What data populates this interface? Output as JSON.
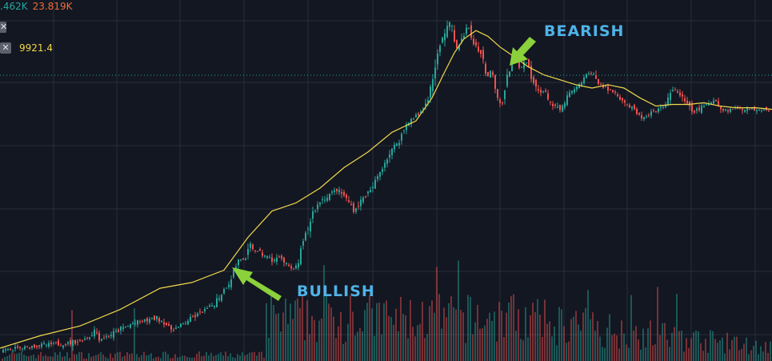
{
  "legend": {
    "value_a": ".462K",
    "value_b": "23.819K",
    "ma_value": "9921.4",
    "close_glyph": "✕"
  },
  "annotations": {
    "bearish": "BEARISH",
    "bullish": "BULLISH"
  },
  "colors": {
    "background": "#131722",
    "grid": "#2a2e39",
    "up": "#26a69a",
    "down": "#ef5350",
    "ma": "#f0d84a",
    "label": "#4fb3e8",
    "arrow": "#8bd13b",
    "price_line": "#26a69a"
  },
  "icons": [
    "close-icon",
    "arrow-icon"
  ],
  "chart_data": {
    "type": "candlestick",
    "ma_label": "9921.4",
    "price_path": [
      [
        0,
        2
      ],
      [
        10,
        3
      ],
      [
        25,
        5
      ],
      [
        40,
        7
      ],
      [
        55,
        9
      ],
      [
        70,
        10
      ],
      [
        85,
        11
      ],
      [
        100,
        14
      ],
      [
        110,
        18
      ],
      [
        118,
        28
      ],
      [
        124,
        16
      ],
      [
        135,
        20
      ],
      [
        150,
        28
      ],
      [
        165,
        35
      ],
      [
        180,
        38
      ],
      [
        195,
        42
      ],
      [
        205,
        36
      ],
      [
        212,
        28
      ],
      [
        222,
        30
      ],
      [
        235,
        40
      ],
      [
        250,
        48
      ],
      [
        265,
        58
      ],
      [
        275,
        70
      ],
      [
        285,
        85
      ],
      [
        292,
        100
      ],
      [
        298,
        115
      ],
      [
        305,
        110
      ],
      [
        312,
        130
      ],
      [
        320,
        122
      ],
      [
        330,
        118
      ],
      [
        340,
        112
      ],
      [
        350,
        116
      ],
      [
        358,
        108
      ],
      [
        365,
        98
      ],
      [
        372,
        110
      ],
      [
        380,
        140
      ],
      [
        390,
        170
      ],
      [
        400,
        185
      ],
      [
        410,
        192
      ],
      [
        420,
        198
      ],
      [
        428,
        192
      ],
      [
        436,
        182
      ],
      [
        442,
        172
      ],
      [
        448,
        182
      ],
      [
        455,
        190
      ],
      [
        462,
        196
      ],
      [
        470,
        212
      ],
      [
        480,
        232
      ],
      [
        490,
        248
      ],
      [
        500,
        262
      ],
      [
        508,
        280
      ],
      [
        515,
        284
      ],
      [
        522,
        290
      ],
      [
        530,
        300
      ],
      [
        537,
        320
      ],
      [
        543,
        350
      ],
      [
        550,
        375
      ],
      [
        557,
        398
      ],
      [
        562,
        402
      ],
      [
        567,
        380
      ],
      [
        572,
        370
      ],
      [
        578,
        385
      ],
      [
        584,
        398
      ],
      [
        590,
        378
      ],
      [
        596,
        372
      ],
      [
        602,
        360
      ],
      [
        608,
        335
      ],
      [
        614,
        345
      ],
      [
        620,
        315
      ],
      [
        626,
        300
      ],
      [
        632,
        330
      ],
      [
        638,
        350
      ],
      [
        644,
        360
      ],
      [
        650,
        345
      ],
      [
        656,
        355
      ],
      [
        662,
        335
      ],
      [
        670,
        320
      ],
      [
        680,
        318
      ],
      [
        690,
        300
      ],
      [
        700,
        295
      ],
      [
        710,
        315
      ],
      [
        720,
        322
      ],
      [
        730,
        335
      ],
      [
        738,
        342
      ],
      [
        746,
        330
      ],
      [
        755,
        322
      ],
      [
        765,
        318
      ],
      [
        775,
        310
      ],
      [
        785,
        300
      ],
      [
        795,
        290
      ],
      [
        805,
        285
      ],
      [
        815,
        292
      ],
      [
        825,
        297
      ],
      [
        835,
        310
      ],
      [
        842,
        322
      ],
      [
        850,
        312
      ],
      [
        858,
        300
      ],
      [
        866,
        292
      ],
      [
        875,
        298
      ],
      [
        885,
        302
      ],
      [
        893,
        310
      ],
      [
        900,
        296
      ],
      [
        910,
        295
      ],
      [
        920,
        298
      ],
      [
        930,
        297
      ],
      [
        940,
        296
      ],
      [
        950,
        297
      ],
      [
        965,
        296
      ]
    ],
    "ma_path": [
      [
        0,
        5
      ],
      [
        50,
        20
      ],
      [
        100,
        32
      ],
      [
        150,
        52
      ],
      [
        200,
        78
      ],
      [
        240,
        85
      ],
      [
        280,
        100
      ],
      [
        310,
        140
      ],
      [
        340,
        172
      ],
      [
        370,
        182
      ],
      [
        400,
        200
      ],
      [
        430,
        225
      ],
      [
        460,
        244
      ],
      [
        490,
        268
      ],
      [
        520,
        282
      ],
      [
        540,
        310
      ],
      [
        555,
        340
      ],
      [
        568,
        365
      ],
      [
        580,
        382
      ],
      [
        595,
        392
      ],
      [
        610,
        385
      ],
      [
        625,
        372
      ],
      [
        640,
        362
      ],
      [
        660,
        348
      ],
      [
        680,
        338
      ],
      [
        700,
        332
      ],
      [
        720,
        326
      ],
      [
        740,
        322
      ],
      [
        760,
        326
      ],
      [
        780,
        322
      ],
      [
        800,
        310
      ],
      [
        820,
        300
      ],
      [
        840,
        302
      ],
      [
        860,
        302
      ],
      [
        880,
        304
      ],
      [
        900,
        300
      ],
      [
        920,
        298
      ],
      [
        945,
        298
      ],
      [
        965,
        296
      ]
    ]
  }
}
